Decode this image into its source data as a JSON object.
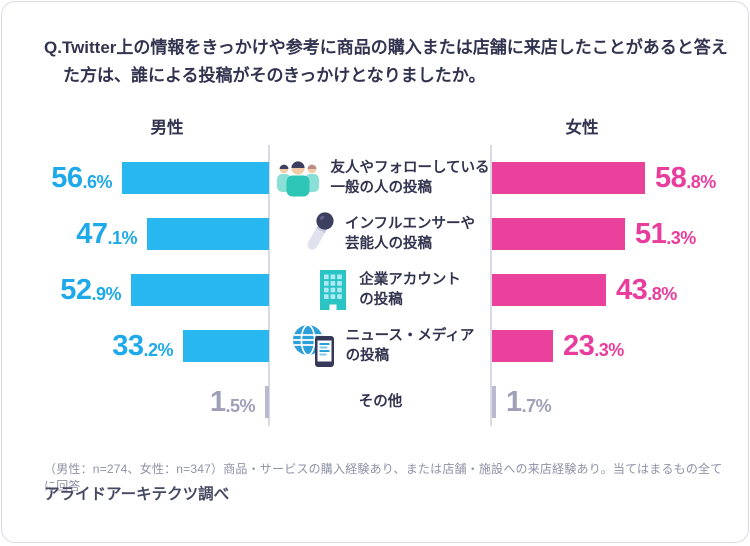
{
  "card": {
    "title": "Q.Twitter上の情報をきっかけや参考に商品の購入または店舗に来店したことがあると答えた方は、誰による投稿がそのきっかけとなりましたか。",
    "footnote": "（男性：n=274、女性：n=347）商品・サービスの購入経験あり、または店舗・施設への来店経験あり。当てはまるもの全てに回答",
    "source": "アライドアーキテクツ調べ"
  },
  "chart_data": {
    "type": "bar",
    "orientation": "horizontal-diverging",
    "unit": "%",
    "groups": [
      {
        "name": "男性",
        "n": 274
      },
      {
        "name": "女性",
        "n": 347
      }
    ],
    "categories": [
      {
        "label_lines": [
          "友人やフォローしている",
          "一般の人の投稿"
        ],
        "icon": "people-group-icon"
      },
      {
        "label_lines": [
          "インフルエンサーや",
          "芸能人の投稿"
        ],
        "icon": "microphone-icon"
      },
      {
        "label_lines": [
          "企業アカウント",
          "の投稿"
        ],
        "icon": "building-icon"
      },
      {
        "label_lines": [
          "ニュース・メディア",
          "の投稿"
        ],
        "icon": "globe-phone-icon"
      },
      {
        "label_lines": [
          "その他"
        ],
        "icon": null
      }
    ],
    "series": [
      {
        "name": "男性",
        "values": [
          56.6,
          47.1,
          52.9,
          33.2,
          1.5
        ]
      },
      {
        "name": "女性",
        "values": [
          58.8,
          51.3,
          43.8,
          23.3,
          1.7
        ]
      }
    ],
    "muted_rows": [
      4
    ],
    "colors": {
      "male_bar": "#29b7f0",
      "male_label": "#1ea9ea",
      "female_bar": "#e9419c",
      "female_label": "#e83d9c",
      "muted_bar": "#b9bad2",
      "muted_label": "#9ea0b8",
      "axis": "#d9dae6",
      "text_dark": "#32344f",
      "footnote": "#8f92a6"
    },
    "xlim": [
      0,
      60
    ],
    "grid": false,
    "legend_position": "center-column"
  }
}
